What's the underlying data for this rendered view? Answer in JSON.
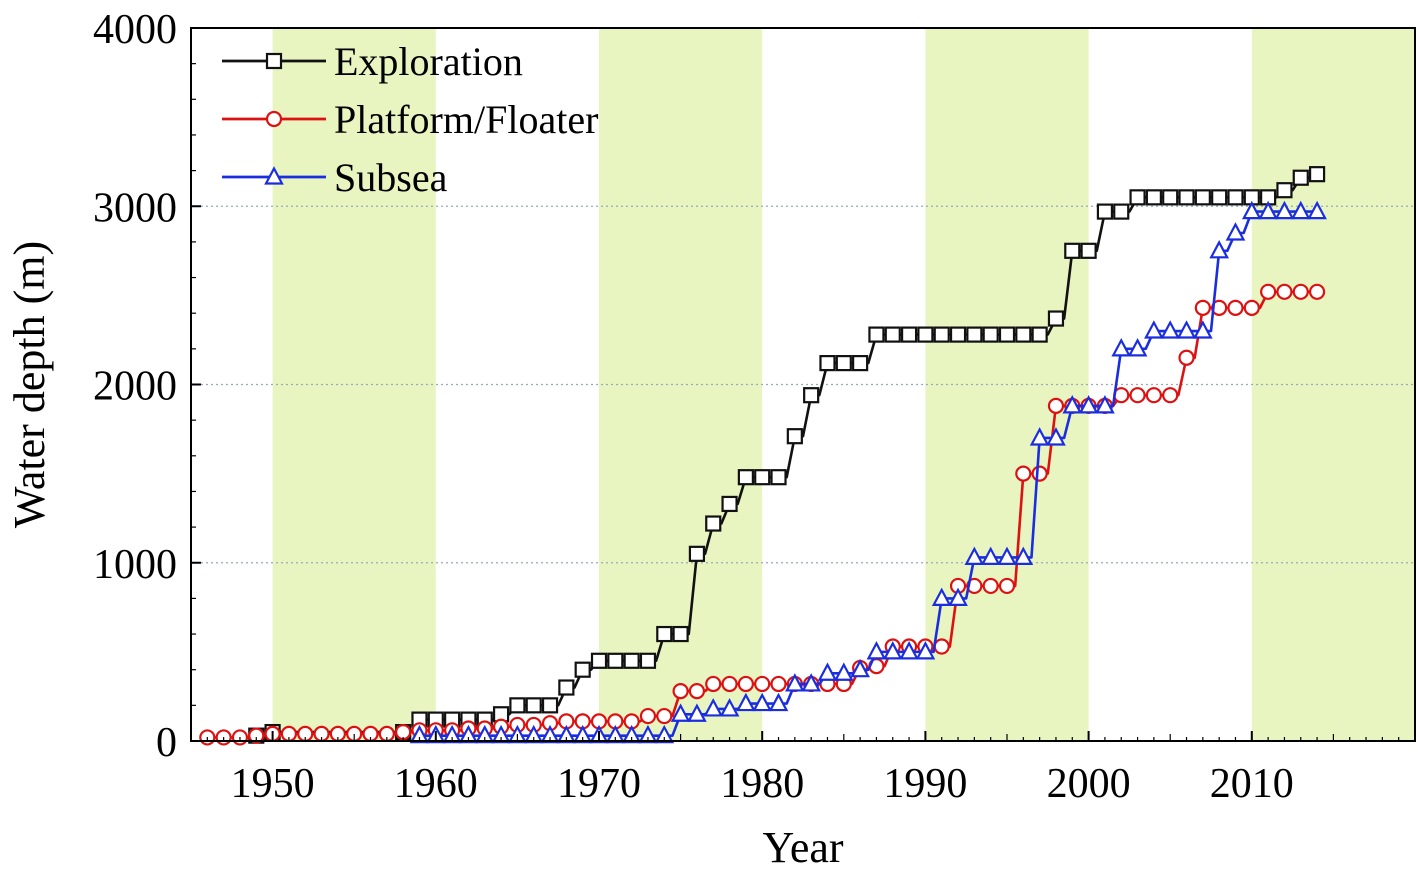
{
  "chart_data": {
    "type": "line",
    "title": "",
    "xlabel": "Year",
    "ylabel": "Water depth (m)",
    "xlim": [
      1945,
      2020
    ],
    "ylim": [
      0,
      4000
    ],
    "x_ticks": [
      1950,
      1960,
      1970,
      1980,
      1990,
      2000,
      2010
    ],
    "x_tick_labels": [
      "1950",
      "1960",
      "1970",
      "1980",
      "1990",
      "2000",
      "2010"
    ],
    "y_ticks": [
      0,
      1000,
      2000,
      3000,
      4000
    ],
    "y_tick_labels": [
      "0",
      "1000",
      "2000",
      "3000",
      "4000"
    ],
    "gridlines_y": [
      1000,
      2000,
      3000
    ],
    "grid": "horizontal dotted",
    "shaded_bands": [
      [
        1950,
        1960
      ],
      [
        1970,
        1980
      ],
      [
        1990,
        2000
      ],
      [
        2010,
        2020
      ]
    ],
    "band_color": "#e8f5c0",
    "legend": {
      "position": "top-left"
    },
    "series": [
      {
        "name": "Exploration",
        "color": "#111111",
        "marker": "square",
        "points": [
          [
            1949,
            30
          ],
          [
            1950,
            50
          ],
          [
            1958,
            50
          ],
          [
            1959,
            120
          ],
          [
            1960,
            120
          ],
          [
            1961,
            120
          ],
          [
            1962,
            120
          ],
          [
            1963,
            120
          ],
          [
            1964,
            150
          ],
          [
            1965,
            200
          ],
          [
            1966,
            200
          ],
          [
            1967,
            200
          ],
          [
            1968,
            300
          ],
          [
            1969,
            400
          ],
          [
            1970,
            450
          ],
          [
            1971,
            450
          ],
          [
            1972,
            450
          ],
          [
            1973,
            450
          ],
          [
            1974,
            600
          ],
          [
            1975,
            600
          ],
          [
            1976,
            1050
          ],
          [
            1977,
            1220
          ],
          [
            1978,
            1330
          ],
          [
            1979,
            1480
          ],
          [
            1980,
            1480
          ],
          [
            1981,
            1480
          ],
          [
            1982,
            1710
          ],
          [
            1983,
            1940
          ],
          [
            1984,
            2120
          ],
          [
            1985,
            2120
          ],
          [
            1986,
            2120
          ],
          [
            1987,
            2280
          ],
          [
            1988,
            2280
          ],
          [
            1989,
            2280
          ],
          [
            1990,
            2280
          ],
          [
            1991,
            2280
          ],
          [
            1992,
            2280
          ],
          [
            1993,
            2280
          ],
          [
            1994,
            2280
          ],
          [
            1995,
            2280
          ],
          [
            1996,
            2280
          ],
          [
            1997,
            2280
          ],
          [
            1998,
            2370
          ],
          [
            1999,
            2750
          ],
          [
            2000,
            2750
          ],
          [
            2001,
            2970
          ],
          [
            2002,
            2970
          ],
          [
            2003,
            3050
          ],
          [
            2004,
            3050
          ],
          [
            2005,
            3050
          ],
          [
            2006,
            3050
          ],
          [
            2007,
            3050
          ],
          [
            2008,
            3050
          ],
          [
            2009,
            3050
          ],
          [
            2010,
            3050
          ],
          [
            2011,
            3050
          ],
          [
            2012,
            3090
          ],
          [
            2013,
            3160
          ],
          [
            2014,
            3180
          ]
        ]
      },
      {
        "name": "Platform/Floater",
        "color": "#dd1111",
        "marker": "circle",
        "points": [
          [
            1946,
            20
          ],
          [
            1947,
            20
          ],
          [
            1948,
            20
          ],
          [
            1949,
            30
          ],
          [
            1950,
            40
          ],
          [
            1951,
            40
          ],
          [
            1952,
            40
          ],
          [
            1953,
            40
          ],
          [
            1954,
            40
          ],
          [
            1955,
            40
          ],
          [
            1956,
            40
          ],
          [
            1957,
            40
          ],
          [
            1958,
            50
          ],
          [
            1959,
            60
          ],
          [
            1960,
            60
          ],
          [
            1961,
            60
          ],
          [
            1962,
            70
          ],
          [
            1963,
            70
          ],
          [
            1964,
            80
          ],
          [
            1965,
            90
          ],
          [
            1966,
            90
          ],
          [
            1967,
            100
          ],
          [
            1968,
            110
          ],
          [
            1969,
            110
          ],
          [
            1970,
            110
          ],
          [
            1971,
            110
          ],
          [
            1972,
            110
          ],
          [
            1973,
            140
          ],
          [
            1974,
            140
          ],
          [
            1975,
            280
          ],
          [
            1976,
            280
          ],
          [
            1977,
            320
          ],
          [
            1978,
            320
          ],
          [
            1979,
            320
          ],
          [
            1980,
            320
          ],
          [
            1981,
            320
          ],
          [
            1982,
            320
          ],
          [
            1983,
            320
          ],
          [
            1984,
            320
          ],
          [
            1985,
            320
          ],
          [
            1986,
            410
          ],
          [
            1987,
            420
          ],
          [
            1988,
            530
          ],
          [
            1989,
            530
          ],
          [
            1990,
            530
          ],
          [
            1991,
            530
          ],
          [
            1992,
            870
          ],
          [
            1993,
            870
          ],
          [
            1994,
            870
          ],
          [
            1995,
            870
          ],
          [
            1996,
            1500
          ],
          [
            1997,
            1500
          ],
          [
            1998,
            1880
          ],
          [
            1999,
            1880
          ],
          [
            2000,
            1880
          ],
          [
            2001,
            1880
          ],
          [
            2002,
            1940
          ],
          [
            2003,
            1940
          ],
          [
            2004,
            1940
          ],
          [
            2005,
            1940
          ],
          [
            2006,
            2150
          ],
          [
            2007,
            2430
          ],
          [
            2008,
            2430
          ],
          [
            2009,
            2430
          ],
          [
            2010,
            2430
          ],
          [
            2011,
            2520
          ],
          [
            2012,
            2520
          ],
          [
            2013,
            2520
          ],
          [
            2014,
            2520
          ]
        ]
      },
      {
        "name": "Subsea",
        "color": "#1a2ee0",
        "marker": "triangle",
        "points": [
          [
            1959,
            30
          ],
          [
            1960,
            30
          ],
          [
            1961,
            30
          ],
          [
            1962,
            30
          ],
          [
            1963,
            30
          ],
          [
            1964,
            30
          ],
          [
            1965,
            30
          ],
          [
            1966,
            30
          ],
          [
            1967,
            30
          ],
          [
            1968,
            30
          ],
          [
            1969,
            30
          ],
          [
            1970,
            30
          ],
          [
            1971,
            30
          ],
          [
            1972,
            30
          ],
          [
            1973,
            30
          ],
          [
            1974,
            30
          ],
          [
            1975,
            150
          ],
          [
            1976,
            150
          ],
          [
            1977,
            180
          ],
          [
            1978,
            180
          ],
          [
            1979,
            210
          ],
          [
            1980,
            210
          ],
          [
            1981,
            210
          ],
          [
            1982,
            320
          ],
          [
            1983,
            320
          ],
          [
            1984,
            380
          ],
          [
            1985,
            380
          ],
          [
            1986,
            400
          ],
          [
            1987,
            500
          ],
          [
            1988,
            500
          ],
          [
            1989,
            500
          ],
          [
            1990,
            500
          ],
          [
            1991,
            800
          ],
          [
            1992,
            800
          ],
          [
            1993,
            1030
          ],
          [
            1994,
            1030
          ],
          [
            1995,
            1030
          ],
          [
            1996,
            1030
          ],
          [
            1997,
            1700
          ],
          [
            1998,
            1700
          ],
          [
            1999,
            1880
          ],
          [
            2000,
            1880
          ],
          [
            2001,
            1880
          ],
          [
            2002,
            2200
          ],
          [
            2003,
            2200
          ],
          [
            2004,
            2300
          ],
          [
            2005,
            2300
          ],
          [
            2006,
            2300
          ],
          [
            2007,
            2300
          ],
          [
            2008,
            2750
          ],
          [
            2009,
            2850
          ],
          [
            2010,
            2970
          ],
          [
            2011,
            2970
          ],
          [
            2012,
            2970
          ],
          [
            2013,
            2970
          ],
          [
            2014,
            2970
          ]
        ]
      }
    ]
  }
}
